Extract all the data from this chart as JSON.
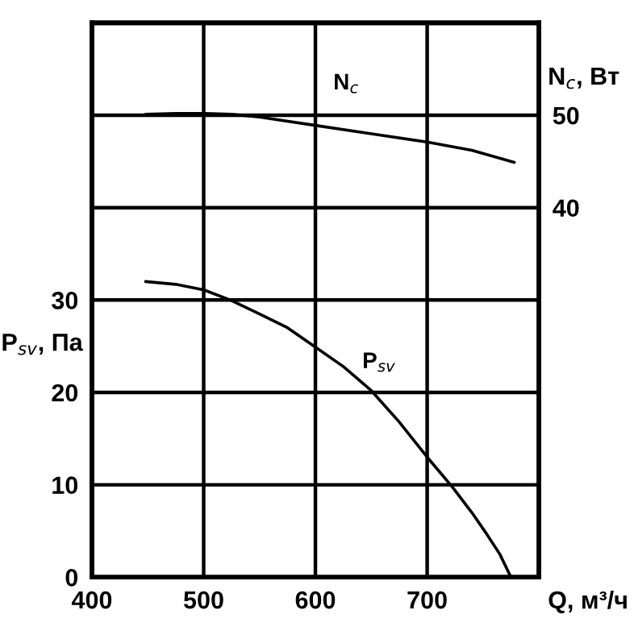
{
  "chart_data": {
    "type": "line",
    "xlabel": "Q, м³/ч",
    "ylabel": "P$_{sv}$, Па",
    "y2label": "N$_{c}$, Вт",
    "xlim": [
      400,
      800
    ],
    "xticks": [
      400,
      500,
      600,
      700
    ],
    "ylim": [
      0,
      60
    ],
    "yticks": [
      0,
      10,
      20,
      30
    ],
    "y2lim": [
      0,
      60
    ],
    "y2ticks": [
      40,
      50
    ],
    "grid": true,
    "series": [
      {
        "name": "N$_{c}$",
        "color": "#000000",
        "axis": "y2",
        "x": [
          448,
          475,
          500,
          525,
          550,
          600,
          650,
          700,
          740,
          778
        ],
        "values": [
          50.1,
          50.2,
          50.2,
          50.1,
          49.8,
          48.9,
          48.0,
          47.1,
          46.2,
          44.9
        ]
      },
      {
        "name": "P$_{sv}$",
        "color": "#000000",
        "x": [
          448,
          475,
          500,
          524,
          550,
          575,
          600,
          625,
          650,
          675,
          700,
          723,
          740,
          752,
          765,
          775
        ],
        "values": [
          32.0,
          31.7,
          31.1,
          30.0,
          28.5,
          27.0,
          24.9,
          22.8,
          20.2,
          16.8,
          13.0,
          9.7,
          7.0,
          4.9,
          2.5,
          0
        ]
      }
    ]
  }
}
